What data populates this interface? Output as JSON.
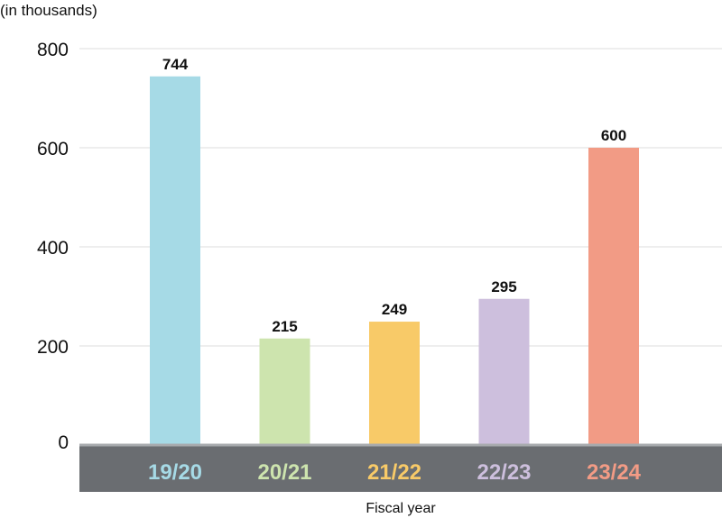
{
  "chart_data": {
    "type": "bar",
    "unit_label": "(in thousands)",
    "xlabel": "Fiscal year",
    "ylim": [
      0,
      800
    ],
    "yticks": [
      0,
      200,
      400,
      600,
      800
    ],
    "grid": true,
    "legend": "none",
    "categories": [
      "19/20",
      "20/21",
      "21/22",
      "22/23",
      "23/24"
    ],
    "values": [
      744,
      215,
      249,
      295,
      600
    ],
    "colors": [
      "#a6dae6",
      "#cde4ae",
      "#f8ca68",
      "#cdbfdd",
      "#f29b85"
    ],
    "axis_band_color": "#6a6d71"
  }
}
